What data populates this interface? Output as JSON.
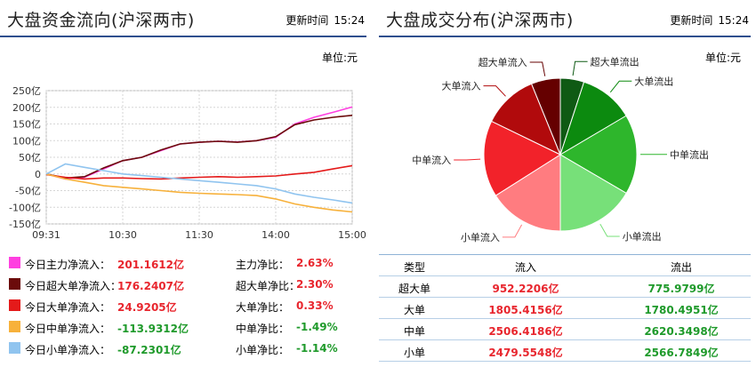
{
  "left": {
    "title": "大盘资金流向(沪深两市)",
    "time_label": "更新时间",
    "time": "15:24",
    "unit": "单位:元",
    "rows": [
      {
        "label": "今日主力净流入：",
        "value": "201.1612亿",
        "ratio_label": "主力净比：",
        "ratio": "2.63%",
        "color": "#ff3fe0"
      },
      {
        "label": "今日超大单净流入：",
        "value": "176.2407亿",
        "ratio_label": "超大单净比：",
        "ratio": "2.30%",
        "color": "#6b0b0b"
      },
      {
        "label": "今日大单净流入：",
        "value": "24.9205亿",
        "ratio_label": "大单净比：",
        "ratio": "0.33%",
        "color": "#e41a1a"
      },
      {
        "label": "今日中单净流入：",
        "value": "-113.9312亿",
        "ratio_label": "中单净比：",
        "ratio": "-1.49%",
        "color": "#f7b13b"
      },
      {
        "label": "今日小单净流入：",
        "value": "-87.2301亿",
        "ratio_label": "小单净比：",
        "ratio": "-1.14%",
        "color": "#90c4ef"
      }
    ]
  },
  "right": {
    "title": "大盘成交分布(沪深两市)",
    "time_label": "更新时间",
    "time": "15:24",
    "unit": "单位:元",
    "table": {
      "headers": [
        "类型",
        "流入",
        "流出"
      ],
      "rows": [
        [
          "超大单",
          "952.2206亿",
          "775.9799亿"
        ],
        [
          "大单",
          "1805.4156亿",
          "1780.4951亿"
        ],
        [
          "中单",
          "2506.4186亿",
          "2620.3498亿"
        ],
        [
          "小单",
          "2479.5548亿",
          "2566.7849亿"
        ]
      ]
    }
  },
  "chart_data": [
    {
      "type": "line",
      "yticks": [
        "250亿",
        "200亿",
        "150亿",
        "100亿",
        "50亿",
        "0",
        "-50亿",
        "-100亿",
        "-150亿"
      ],
      "xticks": [
        "09:31",
        "10:30",
        "11:30",
        "14:00",
        "15:00"
      ],
      "ylim": [
        -150,
        250
      ],
      "grid": true,
      "x": [
        "09:31",
        "09:45",
        "10:00",
        "10:15",
        "10:30",
        "10:45",
        "11:00",
        "11:15",
        "11:30",
        "13:15",
        "13:30",
        "13:45",
        "14:00",
        "14:15",
        "14:30",
        "14:45",
        "15:00"
      ],
      "series": [
        {
          "name": "今日主力净流入",
          "color": "#ff3fe0",
          "values": [
            0,
            -15,
            -10,
            15,
            40,
            50,
            70,
            90,
            95,
            98,
            96,
            100,
            110,
            150,
            170,
            185,
            201
          ]
        },
        {
          "name": "今日超大单净流入",
          "color": "#6b0b0b",
          "values": [
            0,
            -12,
            -8,
            18,
            40,
            50,
            72,
            90,
            95,
            98,
            95,
            100,
            112,
            148,
            162,
            170,
            176
          ]
        },
        {
          "name": "今日大单净流入",
          "color": "#e41a1a",
          "values": [
            -2,
            -10,
            -15,
            -12,
            -12,
            -14,
            -15,
            -12,
            -10,
            -8,
            -10,
            -8,
            -6,
            0,
            5,
            15,
            25
          ]
        },
        {
          "name": "今日中单净流入",
          "color": "#f7b13b",
          "values": [
            0,
            -15,
            -25,
            -35,
            -40,
            -45,
            -50,
            -55,
            -58,
            -60,
            -62,
            -65,
            -75,
            -90,
            -100,
            -108,
            -114
          ]
        },
        {
          "name": "今日小单净流入",
          "color": "#90c4ef",
          "values": [
            0,
            30,
            20,
            10,
            0,
            -5,
            -10,
            -15,
            -20,
            -25,
            -30,
            -35,
            -45,
            -60,
            -70,
            -78,
            -87
          ]
        }
      ]
    },
    {
      "type": "pie",
      "slices": [
        {
          "label": "超大单流出",
          "value": 775.9799,
          "color": "#0f5a14"
        },
        {
          "label": "大单流出",
          "value": 1780.4951,
          "color": "#0c8a0f"
        },
        {
          "label": "中单流出",
          "value": 2620.3498,
          "color": "#2eb62c"
        },
        {
          "label": "小单流出",
          "value": 2566.7849,
          "color": "#77e079"
        },
        {
          "label": "小单流入",
          "value": 2479.5548,
          "color": "#ff7c80"
        },
        {
          "label": "中单流入",
          "value": 2506.4186,
          "color": "#f2222a"
        },
        {
          "label": "大单流入",
          "value": 1805.4156,
          "color": "#b10a0c"
        },
        {
          "label": "超大单流入",
          "value": 952.2206,
          "color": "#650000"
        }
      ]
    }
  ]
}
